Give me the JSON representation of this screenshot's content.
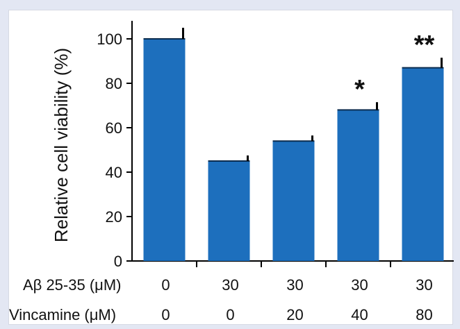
{
  "chart_data": {
    "type": "bar",
    "ylabel": "Relative cell viability (%)",
    "ylim": [
      0,
      110
    ],
    "yticks": [
      0,
      20,
      40,
      60,
      80,
      100
    ],
    "grid": false,
    "bar_color": "#1d6fbd",
    "error_color": "#000000",
    "values": [
      100,
      45,
      54,
      68,
      87
    ],
    "errors": [
      5,
      2.5,
      2.5,
      3.5,
      4.5
    ],
    "significance": [
      "",
      "",
      "",
      "*",
      "**"
    ],
    "row_table": [
      {
        "label": "Aβ 25-35 (μM)",
        "values": [
          "0",
          "30",
          "30",
          "30",
          "30"
        ]
      },
      {
        "label": "Vincamine (μM)",
        "values": [
          "0",
          "0",
          "20",
          "40",
          "80"
        ]
      }
    ]
  }
}
